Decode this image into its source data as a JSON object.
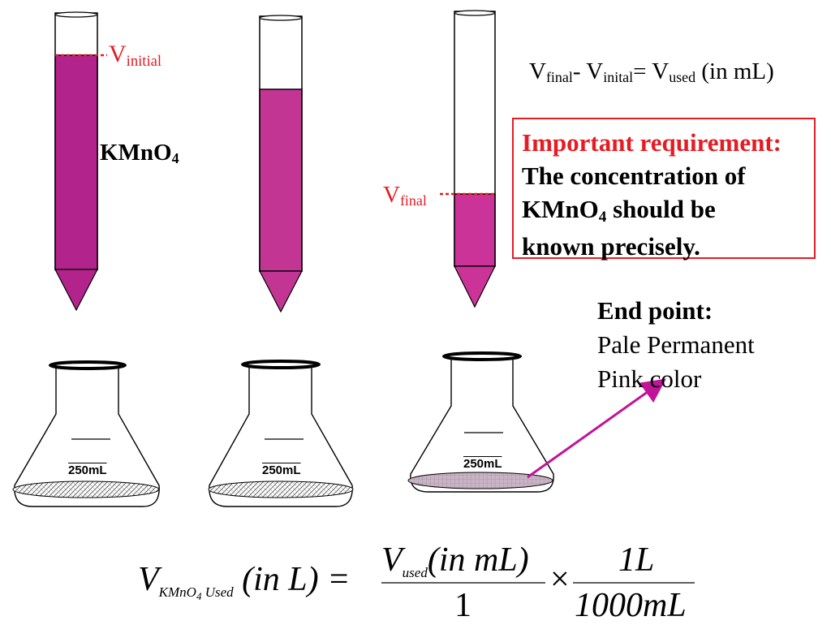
{
  "labels": {
    "v_initial_main": "V",
    "v_initial_sub": "initial",
    "kmno4_main": "KMnO",
    "kmno4_sub": "4",
    "v_final_main": "V",
    "v_final_sub": "final"
  },
  "top_equation": {
    "v1": "V",
    "final_sub": "final",
    "minus": "- V",
    "inital_sub": "inital",
    "equals": "= V",
    "used_sub": "used",
    "unit": " (in mL)"
  },
  "requirement_box": {
    "heading": "Important requirement:",
    "line1": "The concentration of",
    "line2_main": "KMnO",
    "line2_sub": "4",
    "line2_rest": " should be",
    "line3": "known precisely."
  },
  "end_point": {
    "heading": "End point:",
    "line1": "Pale Permanent",
    "line2": "Pink color"
  },
  "flasks": [
    {
      "volume_label": "250mL"
    },
    {
      "volume_label": "250mL"
    },
    {
      "volume_label": "250mL"
    }
  ],
  "formula": {
    "lhs_v": "V",
    "lhs_sub_a": "KMnO",
    "lhs_sub_b": "4",
    "lhs_sub_c": " Used",
    "lhs_unit": "(in L) =",
    "num1_v": "V",
    "num1_sub": "used",
    "num1_unit": "(in mL)",
    "den1": "1",
    "times": "×",
    "num2": "1L",
    "den2": "1000mL"
  },
  "colors": {
    "titrant": "#b3238c",
    "titrant_light": "#cc3399",
    "marker": "#e51c23",
    "arrow": "#c0149a"
  }
}
